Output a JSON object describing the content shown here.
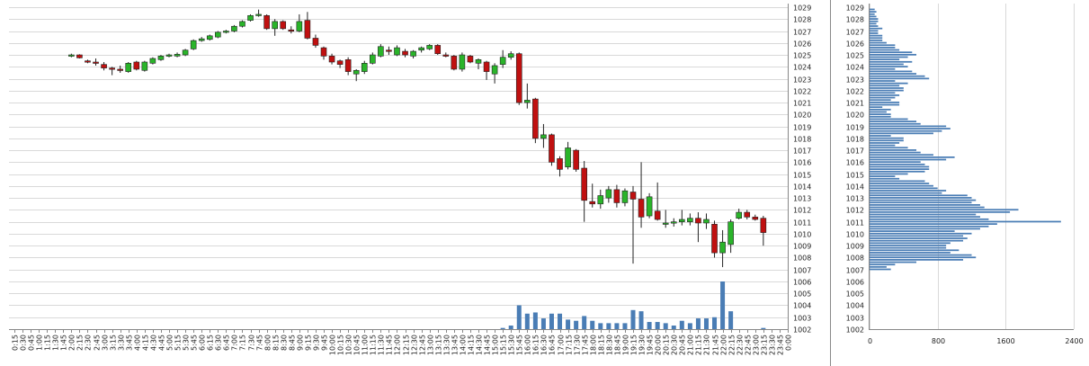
{
  "colors": {
    "up": "#2ab42a",
    "down": "#c01010",
    "volume": "#4a7db5",
    "profile": "#4a7db5",
    "grid": "#d9d9d9"
  },
  "chart_data": [
    {
      "type": "candlestick",
      "ylim": [
        1002,
        1029
      ],
      "y_ticks": [
        "1002",
        "1003",
        "1004",
        "1005",
        "1006",
        "1007",
        "1008",
        "1009",
        "1010",
        "1011",
        "1012",
        "1013",
        "1014",
        "1015",
        "1016",
        "1017",
        "1018",
        "1019",
        "1020",
        "1021",
        "1022",
        "1023",
        "1024",
        "1025",
        "1026",
        "1027",
        "1028",
        "1029"
      ],
      "x_ticks": [
        "0:15",
        "0:30",
        "0:45",
        "1:00",
        "1:15",
        "1:30",
        "1:45",
        "2:00",
        "2:15",
        "2:30",
        "2:45",
        "3:00",
        "3:15",
        "3:30",
        "3:45",
        "4:00",
        "4:15",
        "4:30",
        "4:45",
        "5:00",
        "5:15",
        "5:30",
        "5:45",
        "6:00",
        "6:15",
        "6:30",
        "6:45",
        "7:00",
        "7:15",
        "7:30",
        "7:45",
        "8:00",
        "8:15",
        "8:30",
        "8:45",
        "9:00",
        "9:15",
        "9:30",
        "9:45",
        "10:00",
        "10:15",
        "10:30",
        "10:45",
        "11:00",
        "11:15",
        "11:30",
        "11:45",
        "12:00",
        "12:15",
        "12:30",
        "12:45",
        "13:00",
        "13:15",
        "13:30",
        "13:45",
        "14:00",
        "14:15",
        "14:30",
        "14:45",
        "15:00",
        "15:15",
        "15:30",
        "15:45",
        "16:00",
        "16:15",
        "16:30",
        "16:45",
        "17:00",
        "17:15",
        "17:30",
        "17:45",
        "18:00",
        "18:15",
        "18:30",
        "18:45",
        "19:00",
        "19:15",
        "19:30",
        "19:45",
        "20:00",
        "20:15",
        "20:30",
        "20:45",
        "21:00",
        "21:15",
        "21:30",
        "21:45",
        "22:00",
        "22:15",
        "22:30",
        "22:45",
        "23:00",
        "23:15",
        "23:30",
        "23:45",
        "0:00"
      ],
      "candles": [
        {
          "t": "2:00",
          "o": 1024.95,
          "h": 1025.1,
          "l": 1024.8,
          "c": 1025.0
        },
        {
          "t": "2:15",
          "o": 1025.0,
          "h": 1025.05,
          "l": 1024.7,
          "c": 1024.75
        },
        {
          "t": "2:30",
          "o": 1024.5,
          "h": 1024.6,
          "l": 1024.3,
          "c": 1024.4
        },
        {
          "t": "2:45",
          "o": 1024.4,
          "h": 1024.7,
          "l": 1024.1,
          "c": 1024.3
        },
        {
          "t": "3:00",
          "o": 1024.2,
          "h": 1024.4,
          "l": 1023.7,
          "c": 1023.9
        },
        {
          "t": "3:15",
          "o": 1023.9,
          "h": 1024.0,
          "l": 1023.3,
          "c": 1023.8
        },
        {
          "t": "3:30",
          "o": 1023.8,
          "h": 1024.1,
          "l": 1023.5,
          "c": 1023.7
        },
        {
          "t": "3:45",
          "o": 1023.6,
          "h": 1024.4,
          "l": 1023.5,
          "c": 1024.3
        },
        {
          "t": "4:00",
          "o": 1024.4,
          "h": 1024.5,
          "l": 1023.7,
          "c": 1023.8
        },
        {
          "t": "4:15",
          "o": 1023.7,
          "h": 1024.5,
          "l": 1023.6,
          "c": 1024.4
        },
        {
          "t": "4:30",
          "o": 1024.3,
          "h": 1024.8,
          "l": 1024.2,
          "c": 1024.7
        },
        {
          "t": "4:45",
          "o": 1024.6,
          "h": 1025.0,
          "l": 1024.5,
          "c": 1024.9
        },
        {
          "t": "5:00",
          "o": 1024.9,
          "h": 1025.1,
          "l": 1024.8,
          "c": 1025.0
        },
        {
          "t": "5:15",
          "o": 1024.9,
          "h": 1025.2,
          "l": 1024.8,
          "c": 1025.05
        },
        {
          "t": "5:30",
          "o": 1025.0,
          "h": 1025.5,
          "l": 1024.9,
          "c": 1025.4
        },
        {
          "t": "5:45",
          "o": 1025.5,
          "h": 1026.3,
          "l": 1025.4,
          "c": 1026.2
        },
        {
          "t": "6:00",
          "o": 1026.2,
          "h": 1026.5,
          "l": 1026.1,
          "c": 1026.35
        },
        {
          "t": "6:15",
          "o": 1026.3,
          "h": 1026.7,
          "l": 1026.2,
          "c": 1026.6
        },
        {
          "t": "6:30",
          "o": 1026.5,
          "h": 1027.0,
          "l": 1026.4,
          "c": 1026.9
        },
        {
          "t": "6:45",
          "o": 1026.9,
          "h": 1027.1,
          "l": 1026.8,
          "c": 1027.0
        },
        {
          "t": "7:00",
          "o": 1027.0,
          "h": 1027.5,
          "l": 1026.9,
          "c": 1027.4
        },
        {
          "t": "7:15",
          "o": 1027.4,
          "h": 1027.9,
          "l": 1027.3,
          "c": 1027.8
        },
        {
          "t": "7:30",
          "o": 1027.9,
          "h": 1028.4,
          "l": 1027.8,
          "c": 1028.3
        },
        {
          "t": "7:45",
          "o": 1028.3,
          "h": 1028.8,
          "l": 1028.2,
          "c": 1028.4
        },
        {
          "t": "8:00",
          "o": 1028.3,
          "h": 1028.4,
          "l": 1027.1,
          "c": 1027.2
        },
        {
          "t": "8:15",
          "o": 1027.2,
          "h": 1028.0,
          "l": 1026.6,
          "c": 1027.8
        },
        {
          "t": "8:30",
          "o": 1027.8,
          "h": 1027.9,
          "l": 1027.1,
          "c": 1027.2
        },
        {
          "t": "8:45",
          "o": 1027.1,
          "h": 1027.4,
          "l": 1026.8,
          "c": 1027.0
        },
        {
          "t": "9:00",
          "o": 1027.0,
          "h": 1028.4,
          "l": 1026.9,
          "c": 1027.8
        },
        {
          "t": "9:15",
          "o": 1027.9,
          "h": 1028.6,
          "l": 1026.3,
          "c": 1026.4
        },
        {
          "t": "9:30",
          "o": 1026.4,
          "h": 1026.7,
          "l": 1025.6,
          "c": 1025.8
        },
        {
          "t": "9:45",
          "o": 1025.6,
          "h": 1025.7,
          "l": 1024.6,
          "c": 1024.9
        },
        {
          "t": "10:00",
          "o": 1024.9,
          "h": 1025.1,
          "l": 1024.2,
          "c": 1024.4
        },
        {
          "t": "10:15",
          "o": 1024.5,
          "h": 1024.6,
          "l": 1023.9,
          "c": 1024.2
        },
        {
          "t": "10:30",
          "o": 1024.6,
          "h": 1024.8,
          "l": 1023.3,
          "c": 1023.6
        },
        {
          "t": "10:45",
          "o": 1023.4,
          "h": 1023.8,
          "l": 1022.8,
          "c": 1023.7
        },
        {
          "t": "11:00",
          "o": 1023.6,
          "h": 1024.5,
          "l": 1023.4,
          "c": 1024.3
        },
        {
          "t": "11:15",
          "o": 1024.3,
          "h": 1025.2,
          "l": 1024.2,
          "c": 1025.0
        },
        {
          "t": "11:30",
          "o": 1024.9,
          "h": 1025.9,
          "l": 1024.8,
          "c": 1025.7
        },
        {
          "t": "11:45",
          "o": 1025.4,
          "h": 1025.7,
          "l": 1025.0,
          "c": 1025.3
        },
        {
          "t": "12:00",
          "o": 1025.0,
          "h": 1025.8,
          "l": 1024.9,
          "c": 1025.6
        },
        {
          "t": "12:15",
          "o": 1025.3,
          "h": 1025.5,
          "l": 1024.8,
          "c": 1025.0
        },
        {
          "t": "12:30",
          "o": 1024.9,
          "h": 1025.4,
          "l": 1024.7,
          "c": 1025.3
        },
        {
          "t": "12:45",
          "o": 1025.4,
          "h": 1025.7,
          "l": 1025.2,
          "c": 1025.6
        },
        {
          "t": "13:00",
          "o": 1025.5,
          "h": 1025.9,
          "l": 1025.4,
          "c": 1025.8
        },
        {
          "t": "13:15",
          "o": 1025.8,
          "h": 1025.9,
          "l": 1025.0,
          "c": 1025.1
        },
        {
          "t": "13:30",
          "o": 1025.0,
          "h": 1025.2,
          "l": 1024.8,
          "c": 1024.9
        },
        {
          "t": "13:45",
          "o": 1024.9,
          "h": 1025.0,
          "l": 1023.7,
          "c": 1023.8
        },
        {
          "t": "14:00",
          "o": 1023.8,
          "h": 1025.2,
          "l": 1023.6,
          "c": 1025.0
        },
        {
          "t": "14:15",
          "o": 1024.9,
          "h": 1025.0,
          "l": 1024.3,
          "c": 1024.4
        },
        {
          "t": "14:30",
          "o": 1024.3,
          "h": 1024.7,
          "l": 1023.8,
          "c": 1024.6
        },
        {
          "t": "14:45",
          "o": 1024.4,
          "h": 1024.5,
          "l": 1022.9,
          "c": 1023.6
        },
        {
          "t": "15:00",
          "o": 1023.4,
          "h": 1024.3,
          "l": 1022.6,
          "c": 1024.1
        },
        {
          "t": "15:15",
          "o": 1024.2,
          "h": 1025.4,
          "l": 1023.9,
          "c": 1024.8
        },
        {
          "t": "15:30",
          "o": 1024.8,
          "h": 1025.3,
          "l": 1024.6,
          "c": 1025.1
        },
        {
          "t": "15:45",
          "o": 1025.1,
          "h": 1025.2,
          "l": 1020.8,
          "c": 1021.0
        },
        {
          "t": "16:00",
          "o": 1021.0,
          "h": 1022.6,
          "l": 1020.5,
          "c": 1021.2
        },
        {
          "t": "16:15",
          "o": 1021.3,
          "h": 1021.4,
          "l": 1017.6,
          "c": 1018.0
        },
        {
          "t": "16:30",
          "o": 1018.0,
          "h": 1019.2,
          "l": 1017.2,
          "c": 1018.3
        },
        {
          "t": "16:45",
          "o": 1018.3,
          "h": 1018.4,
          "l": 1015.7,
          "c": 1016.0
        },
        {
          "t": "17:00",
          "o": 1016.3,
          "h": 1016.5,
          "l": 1014.8,
          "c": 1015.4
        },
        {
          "t": "17:15",
          "o": 1015.6,
          "h": 1017.7,
          "l": 1015.4,
          "c": 1017.2
        },
        {
          "t": "17:30",
          "o": 1017.0,
          "h": 1017.1,
          "l": 1015.2,
          "c": 1015.4
        },
        {
          "t": "17:45",
          "o": 1015.5,
          "h": 1016.1,
          "l": 1011.0,
          "c": 1012.8
        },
        {
          "t": "18:00",
          "o": 1012.7,
          "h": 1014.2,
          "l": 1012.2,
          "c": 1012.5
        },
        {
          "t": "18:15",
          "o": 1012.5,
          "h": 1013.7,
          "l": 1012.1,
          "c": 1013.2
        },
        {
          "t": "18:30",
          "o": 1013.0,
          "h": 1014.0,
          "l": 1012.6,
          "c": 1013.7
        },
        {
          "t": "18:45",
          "o": 1013.7,
          "h": 1014.1,
          "l": 1012.2,
          "c": 1012.6
        },
        {
          "t": "19:00",
          "o": 1012.6,
          "h": 1013.8,
          "l": 1012.3,
          "c": 1013.6
        },
        {
          "t": "19:15",
          "o": 1013.5,
          "h": 1014.0,
          "l": 1007.5,
          "c": 1012.9
        },
        {
          "t": "19:30",
          "o": 1012.9,
          "h": 1016.0,
          "l": 1010.5,
          "c": 1011.4
        },
        {
          "t": "19:45",
          "o": 1011.5,
          "h": 1013.4,
          "l": 1011.3,
          "c": 1013.1
        },
        {
          "t": "20:00",
          "o": 1011.9,
          "h": 1014.3,
          "l": 1011.1,
          "c": 1011.2
        },
        {
          "t": "20:15",
          "o": 1010.8,
          "h": 1012.0,
          "l": 1010.5,
          "c": 1010.9
        },
        {
          "t": "20:30",
          "o": 1010.9,
          "h": 1011.3,
          "l": 1010.6,
          "c": 1011.0
        },
        {
          "t": "20:45",
          "o": 1011.0,
          "h": 1012.0,
          "l": 1010.7,
          "c": 1011.2
        },
        {
          "t": "21:00",
          "o": 1011.0,
          "h": 1011.7,
          "l": 1010.7,
          "c": 1011.3
        },
        {
          "t": "21:15",
          "o": 1011.3,
          "h": 1011.8,
          "l": 1009.3,
          "c": 1010.9
        },
        {
          "t": "21:30",
          "o": 1010.9,
          "h": 1011.7,
          "l": 1010.4,
          "c": 1011.2
        },
        {
          "t": "21:45",
          "o": 1010.8,
          "h": 1011.1,
          "l": 1008.0,
          "c": 1008.4
        },
        {
          "t": "22:00",
          "o": 1008.4,
          "h": 1010.3,
          "l": 1007.2,
          "c": 1009.3
        },
        {
          "t": "22:15",
          "o": 1009.1,
          "h": 1011.2,
          "l": 1008.4,
          "c": 1011.0
        },
        {
          "t": "22:30",
          "o": 1011.3,
          "h": 1012.1,
          "l": 1011.2,
          "c": 1011.8
        },
        {
          "t": "22:45",
          "o": 1011.8,
          "h": 1012.0,
          "l": 1011.2,
          "c": 1011.4
        },
        {
          "t": "23:00",
          "o": 1011.4,
          "h": 1011.6,
          "l": 1011.1,
          "c": 1011.2
        },
        {
          "t": "23:15",
          "o": 1011.3,
          "h": 1011.5,
          "l": 1009.0,
          "c": 1010.1
        }
      ],
      "volume": [
        {
          "t": "15:15",
          "v": 1
        },
        {
          "t": "15:30",
          "v": 3
        },
        {
          "t": "15:45",
          "v": 20
        },
        {
          "t": "16:00",
          "v": 13
        },
        {
          "t": "16:15",
          "v": 14
        },
        {
          "t": "16:30",
          "v": 9
        },
        {
          "t": "16:45",
          "v": 13
        },
        {
          "t": "17:00",
          "v": 13
        },
        {
          "t": "17:15",
          "v": 8
        },
        {
          "t": "17:30",
          "v": 7
        },
        {
          "t": "17:45",
          "v": 11
        },
        {
          "t": "18:00",
          "v": 7
        },
        {
          "t": "18:15",
          "v": 5
        },
        {
          "t": "18:30",
          "v": 5
        },
        {
          "t": "18:45",
          "v": 5
        },
        {
          "t": "19:00",
          "v": 5
        },
        {
          "t": "19:15",
          "v": 16
        },
        {
          "t": "19:30",
          "v": 15
        },
        {
          "t": "19:45",
          "v": 6
        },
        {
          "t": "20:00",
          "v": 6
        },
        {
          "t": "20:15",
          "v": 5
        },
        {
          "t": "20:30",
          "v": 3
        },
        {
          "t": "20:45",
          "v": 7
        },
        {
          "t": "21:00",
          "v": 5
        },
        {
          "t": "21:15",
          "v": 9
        },
        {
          "t": "21:30",
          "v": 9
        },
        {
          "t": "21:45",
          "v": 10
        },
        {
          "t": "22:00",
          "v": 40
        },
        {
          "t": "22:15",
          "v": 15
        },
        {
          "t": "23:15",
          "v": 1
        }
      ]
    },
    {
      "type": "bar",
      "orientation": "horizontal",
      "x_ticks": [
        "0",
        "800",
        "1600",
        "2400"
      ],
      "xlim": [
        0,
        2400
      ],
      "y_ticks": [
        "1002",
        "1003",
        "1004",
        "1005",
        "1006",
        "1007",
        "1008",
        "1009",
        "1010",
        "1011",
        "1012",
        "1013",
        "1014",
        "1015",
        "1016",
        "1017",
        "1018",
        "1019",
        "1020",
        "1021",
        "1022",
        "1023",
        "1024",
        "1025",
        "1026",
        "1027",
        "1028",
        "1029"
      ],
      "ylim": [
        1002,
        1029
      ],
      "levels": [
        1007.0,
        1007.2,
        1007.4,
        1007.6,
        1007.8,
        1008.0,
        1008.2,
        1008.4,
        1008.6,
        1008.8,
        1009.0,
        1009.2,
        1009.4,
        1009.6,
        1009.8,
        1010.0,
        1010.2,
        1010.4,
        1010.6,
        1010.8,
        1011.0,
        1011.2,
        1011.4,
        1011.6,
        1011.8,
        1012.0,
        1012.2,
        1012.4,
        1012.6,
        1012.8,
        1013.0,
        1013.2,
        1013.4,
        1013.6,
        1013.8,
        1014.0,
        1014.2,
        1014.4,
        1014.6,
        1014.8,
        1015.0,
        1015.2,
        1015.4,
        1015.6,
        1015.8,
        1016.0,
        1016.2,
        1016.4,
        1016.6,
        1016.8,
        1017.0,
        1017.2,
        1017.4,
        1017.6,
        1017.8,
        1018.0,
        1018.2,
        1018.4,
        1018.6,
        1018.8,
        1019.0,
        1019.2,
        1019.4,
        1019.6,
        1019.8,
        1020.0,
        1020.2,
        1020.4,
        1020.6,
        1020.8,
        1021.0,
        1021.2,
        1021.4,
        1021.6,
        1021.8,
        1022.0,
        1022.2,
        1022.4,
        1022.6,
        1022.8,
        1023.0,
        1023.2,
        1023.4,
        1023.6,
        1023.8,
        1024.0,
        1024.2,
        1024.4,
        1024.6,
        1024.8,
        1025.0,
        1025.2,
        1025.4,
        1025.6,
        1025.8,
        1026.0,
        1026.2,
        1026.4,
        1026.6,
        1026.8,
        1027.0,
        1027.2,
        1027.4,
        1027.6,
        1027.8,
        1028.0,
        1028.2,
        1028.4,
        1028.6,
        1028.8
      ],
      "values": [
        250,
        200,
        300,
        550,
        1100,
        1250,
        1200,
        950,
        1050,
        900,
        900,
        950,
        1100,
        1150,
        1100,
        1200,
        1000,
        1300,
        1400,
        1500,
        2250,
        1400,
        1300,
        1250,
        1650,
        1750,
        1350,
        1300,
        1200,
        1250,
        1200,
        1150,
        850,
        900,
        800,
        750,
        700,
        650,
        350,
        300,
        450,
        650,
        700,
        700,
        650,
        600,
        900,
        1000,
        750,
        600,
        550,
        450,
        300,
        350,
        400,
        400,
        250,
        750,
        850,
        950,
        900,
        600,
        550,
        450,
        250,
        250,
        200,
        250,
        150,
        350,
        350,
        250,
        300,
        350,
        300,
        400,
        400,
        350,
        450,
        300,
        700,
        650,
        550,
        500,
        300,
        450,
        400,
        500,
        350,
        450,
        550,
        500,
        350,
        300,
        300,
        200,
        150,
        150,
        150,
        100,
        100,
        150,
        100,
        80,
        100,
        100,
        80,
        60,
        80,
        60
      ]
    }
  ]
}
